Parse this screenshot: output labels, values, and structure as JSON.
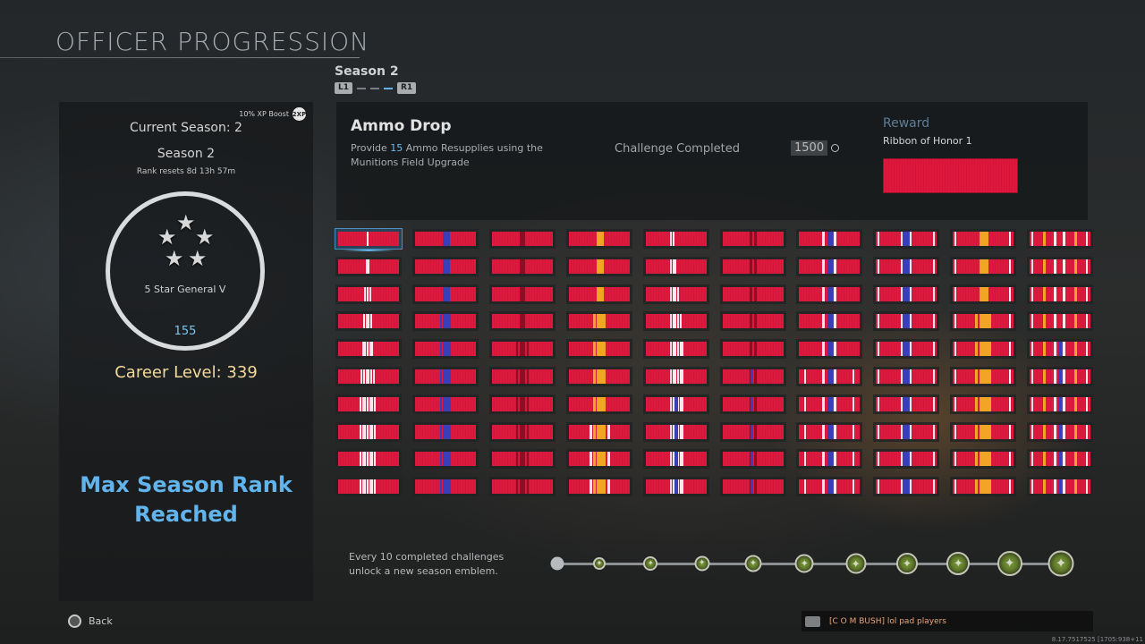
{
  "page": {
    "title": "OFFICER PROGRESSION"
  },
  "season_header": {
    "label": "Season 2",
    "prev_key": "L1",
    "next_key": "R1"
  },
  "left_panel": {
    "xp_boost_label": "10% XP Boost",
    "xp_boost_icon": "2XP",
    "current_season": "Current Season: 2",
    "season_name": "Season 2",
    "rank_resets": "Rank resets 8d 13h 57m",
    "rank_name": "5 Star General V",
    "rank_number": "155",
    "career_level": "Career Level: 339",
    "max_rank_line1": "Max Season Rank",
    "max_rank_line2": "Reached",
    "rank_icon": "five-star-insignia"
  },
  "challenge": {
    "title": "Ammo Drop",
    "desc_pre": "Provide ",
    "desc_count": "15",
    "desc_post": " Ammo Resupplies using the Munitions Field Upgrade",
    "status": "Challenge Completed",
    "xp_value": "1500",
    "reward_label": "Reward",
    "reward_name": "Ribbon of Honor 1"
  },
  "ribbon_grid": {
    "columns": 10,
    "rows": 10,
    "selected_index": 0,
    "column_patterns": [
      "white-center",
      "blue-center",
      "dark-red-center",
      "gold-center",
      "white-double",
      "dark-red-stripes",
      "white-blue-white",
      "blue-white-edges",
      "gold-white-edges",
      "multi-stripe"
    ]
  },
  "progress": {
    "note": "Every 10 completed challenges unlock a new season emblem.",
    "emblem_count": 10,
    "completed_emblems": 10,
    "emblem_icon": "season-emblem-icon"
  },
  "footer": {
    "back_label": "Back",
    "chat_message": "[C O M BUSH] lol pad players",
    "coords_text": "8.17.7517525 [1705:938+11"
  },
  "colors": {
    "ribbon_red": "#dd1a3e",
    "accent_blue": "#62b4ec",
    "career_gold": "#f2d99a",
    "reward_label": "#5d7d96"
  }
}
